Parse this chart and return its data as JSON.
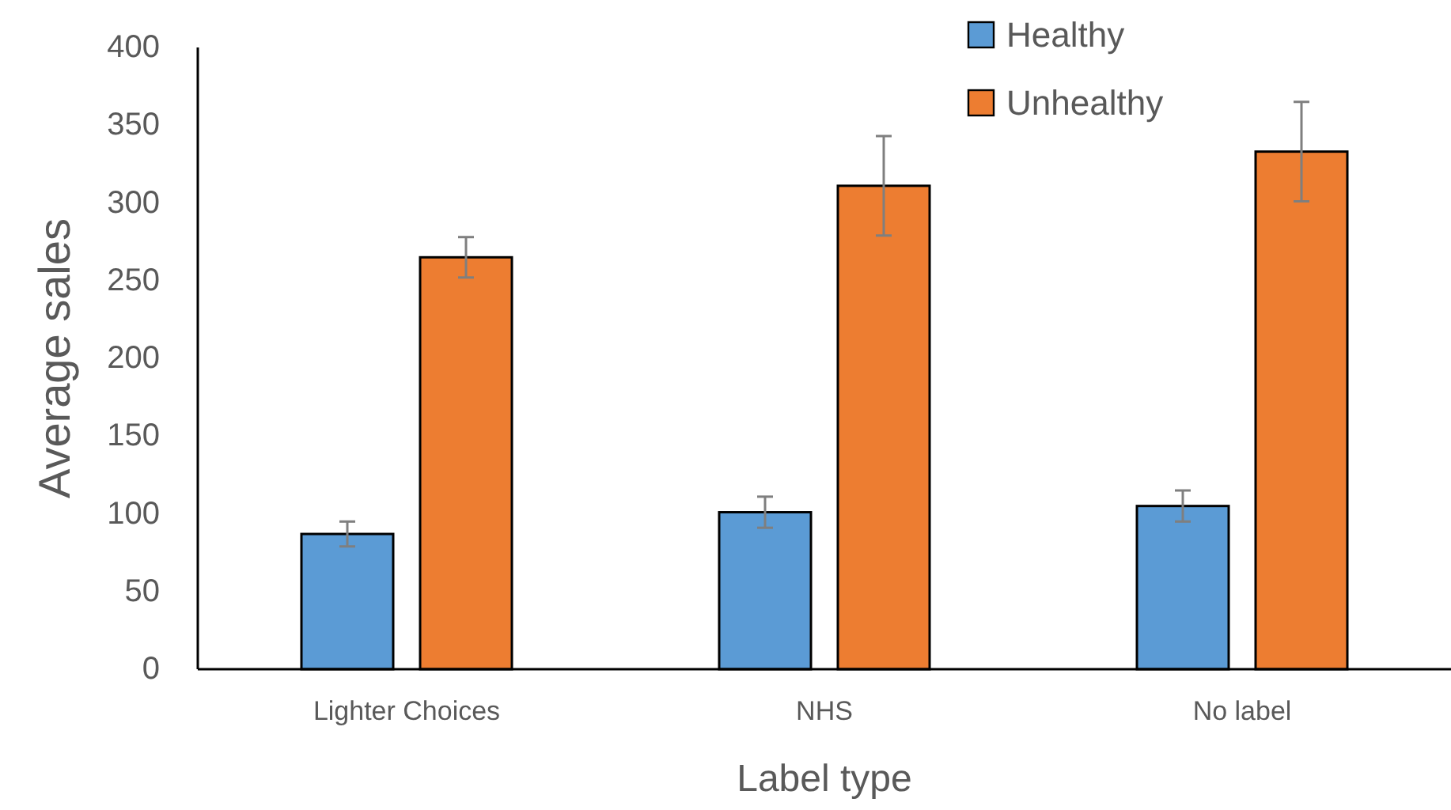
{
  "chart_data": {
    "type": "bar",
    "xlabel": "Label type",
    "ylabel": "Average sales",
    "categories": [
      "Lighter Choices",
      "NHS",
      "No label"
    ],
    "series": [
      {
        "name": "Healthy",
        "color": "#5b9bd5",
        "values": [
          87,
          101,
          105
        ],
        "errors": [
          8,
          10,
          10
        ]
      },
      {
        "name": "Unhealthy",
        "color": "#ed7d31",
        "values": [
          265,
          311,
          333
        ],
        "errors": [
          13,
          32,
          32
        ]
      }
    ],
    "ylim": [
      0,
      400
    ],
    "yticks": [
      0,
      50,
      100,
      150,
      200,
      250,
      300,
      350,
      400
    ],
    "grid": false,
    "legend": "top right"
  }
}
